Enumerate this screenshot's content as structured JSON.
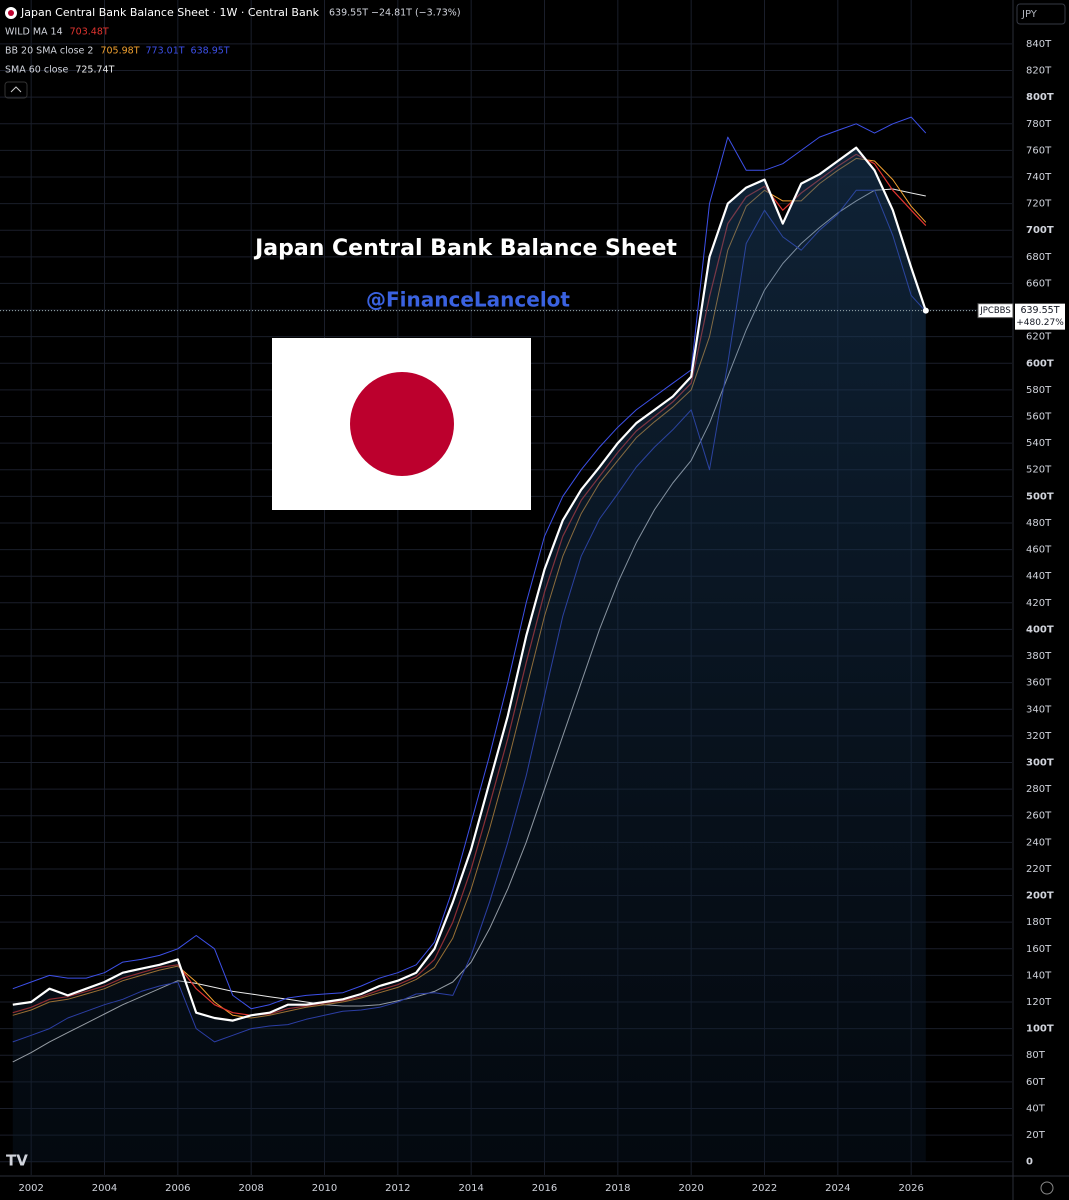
{
  "chart_data": {
    "type": "line",
    "header": "Japan Central Bank Balance Sheet · 1W · Central Bank",
    "change": "−24.81T (−3.73%)",
    "percent_change": "+480.27%",
    "currency": "JPY",
    "annotations": [
      "Japan Central Bank Balance Sheet",
      "@FinanceLancelot"
    ],
    "x": [
      2001.5,
      2002,
      2002.5,
      2003,
      2003.5,
      2004,
      2004.5,
      2005,
      2005.5,
      2006,
      2006.5,
      2007,
      2007.5,
      2008,
      2008.5,
      2009,
      2009.5,
      2010,
      2010.5,
      2011,
      2011.5,
      2012,
      2012.5,
      2013,
      2013.5,
      2014,
      2014.5,
      2015,
      2015.5,
      2016,
      2016.5,
      2017,
      2017.5,
      2018,
      2018.5,
      2019,
      2019.5,
      2020,
      2020.5,
      2021,
      2021.5,
      2022,
      2022.5,
      2023,
      2023.5,
      2024,
      2024.5,
      2025,
      2025.5,
      2026,
      2026.4
    ],
    "series": [
      {
        "name": "JPCBBS",
        "color": "#ffffff",
        "width": 2.2,
        "area": true,
        "last_label": "639.55T",
        "values": [
          118,
          120,
          130,
          125,
          130,
          135,
          142,
          145,
          148,
          152,
          112,
          108,
          106,
          110,
          112,
          118,
          118,
          120,
          122,
          126,
          132,
          136,
          142,
          160,
          195,
          235,
          285,
          335,
          395,
          445,
          482,
          505,
          522,
          540,
          555,
          565,
          575,
          590,
          680,
          720,
          732,
          738,
          705,
          735,
          742,
          752,
          762,
          745,
          715,
          672,
          639.55
        ]
      },
      {
        "name": "WILD MA 14",
        "color": "#e0342f",
        "width": 1.2,
        "last_label": "703.48T",
        "values": [
          112,
          116,
          122,
          124,
          128,
          132,
          138,
          142,
          146,
          148,
          130,
          118,
          112,
          110,
          111,
          115,
          117,
          119,
          121,
          124,
          129,
          133,
          139,
          152,
          180,
          220,
          268,
          318,
          375,
          428,
          470,
          497,
          515,
          533,
          549,
          560,
          571,
          585,
          650,
          705,
          725,
          733,
          715,
          728,
          738,
          748,
          757,
          750,
          730,
          715,
          703.48
        ]
      },
      {
        "name": "BB 20 SMA close 2",
        "color": "#f0a030",
        "width": 1,
        "last_label": "705.98T",
        "values": [
          110,
          114,
          120,
          122,
          126,
          130,
          136,
          140,
          144,
          147,
          135,
          120,
          110,
          108,
          110,
          113,
          116,
          118,
          120,
          123,
          127,
          131,
          137,
          146,
          168,
          205,
          250,
          300,
          355,
          410,
          455,
          487,
          510,
          527,
          544,
          556,
          567,
          580,
          620,
          685,
          718,
          730,
          722,
          722,
          735,
          745,
          754,
          752,
          738,
          718,
          705.98
        ]
      },
      {
        "color": "#3d50e8",
        "width": 1,
        "last_label": "773.01T",
        "values": [
          130,
          135,
          140,
          138,
          138,
          142,
          150,
          152,
          155,
          160,
          170,
          160,
          125,
          115,
          118,
          123,
          125,
          126,
          127,
          132,
          138,
          142,
          148,
          165,
          205,
          255,
          305,
          360,
          420,
          470,
          500,
          520,
          537,
          552,
          565,
          575,
          585,
          595,
          720,
          770,
          745,
          745,
          750,
          760,
          770,
          775,
          780,
          773,
          780,
          785,
          773.01
        ]
      },
      {
        "color": "#3d50e8",
        "width": 1,
        "last_label": "638.95T",
        "values": [
          90,
          95,
          100,
          108,
          113,
          118,
          122,
          128,
          132,
          135,
          100,
          90,
          95,
          100,
          102,
          103,
          107,
          110,
          113,
          114,
          116,
          120,
          126,
          127,
          125,
          155,
          195,
          240,
          290,
          350,
          410,
          455,
          483,
          502,
          522,
          537,
          550,
          565,
          520,
          600,
          690,
          715,
          695,
          685,
          700,
          712,
          730,
          730,
          696,
          651,
          638.95
        ]
      },
      {
        "name": "SMA 60 close",
        "color": "#e8e8e8",
        "width": 1,
        "last_label": "725.74T",
        "values": [
          75,
          82,
          90,
          97,
          104,
          111,
          118,
          124,
          130,
          136,
          134,
          131,
          128,
          126,
          124,
          122,
          120,
          118,
          117,
          117,
          118,
          121,
          124,
          128,
          135,
          150,
          175,
          205,
          240,
          280,
          320,
          360,
          400,
          435,
          465,
          490,
          510,
          527,
          555,
          590,
          625,
          655,
          675,
          690,
          702,
          713,
          722,
          730,
          731,
          728,
          725.74
        ]
      }
    ],
    "xlim": [
      2001.15,
      2028.75
    ],
    "xticks": [
      2002,
      2004,
      2006,
      2008,
      2010,
      2012,
      2014,
      2016,
      2018,
      2020,
      2022,
      2024,
      2026
    ],
    "ylim": [
      -10,
      873
    ],
    "yticks": [
      0,
      {
        "value": 20,
        "label": "20T"
      },
      {
        "value": 40,
        "label": "40T"
      },
      {
        "value": 60,
        "label": "60T"
      },
      {
        "value": 80,
        "label": "80T"
      },
      {
        "value": 100,
        "label": "100T"
      },
      {
        "value": 120,
        "label": "120T"
      },
      {
        "value": 140,
        "label": "140T"
      },
      {
        "value": 160,
        "label": "160T"
      },
      {
        "value": 180,
        "label": "180T"
      },
      {
        "value": 200,
        "label": "200T"
      },
      {
        "value": 220,
        "label": "220T"
      },
      {
        "value": 240,
        "label": "240T"
      },
      {
        "value": 260,
        "label": "260T"
      },
      {
        "value": 280,
        "label": "280T"
      },
      {
        "value": 300,
        "label": "300T"
      },
      {
        "value": 320,
        "label": "320T"
      },
      {
        "value": 340,
        "label": "340T"
      },
      {
        "value": 360,
        "label": "360T"
      },
      {
        "value": 380,
        "label": "380T"
      },
      {
        "value": 400,
        "label": "400T"
      },
      {
        "value": 420,
        "label": "420T"
      },
      {
        "value": 440,
        "label": "440T"
      },
      {
        "value": 460,
        "label": "460T"
      },
      {
        "value": 480,
        "label": "480T"
      },
      {
        "value": 500,
        "label": "500T"
      },
      {
        "value": 520,
        "label": "520T"
      },
      {
        "value": 540,
        "label": "540T"
      },
      {
        "value": 560,
        "label": "560T"
      },
      {
        "value": 580,
        "label": "580T"
      },
      {
        "value": 600,
        "label": "600T"
      },
      {
        "value": 620,
        "label": "620T"
      },
      {
        "value": 640,
        "label": "640T"
      },
      {
        "value": 660,
        "label": "660T"
      },
      {
        "value": 680,
        "label": "680T"
      },
      {
        "value": 700,
        "label": "700T"
      },
      {
        "value": 720,
        "label": "720T"
      },
      {
        "value": 740,
        "label": "740T"
      },
      {
        "value": 760,
        "label": "760T"
      },
      {
        "value": 780,
        "label": "780T"
      },
      {
        "value": 800,
        "label": "800T"
      },
      {
        "value": 820,
        "label": "820T"
      },
      {
        "value": 840,
        "label": "840T"
      }
    ],
    "grid": true
  }
}
